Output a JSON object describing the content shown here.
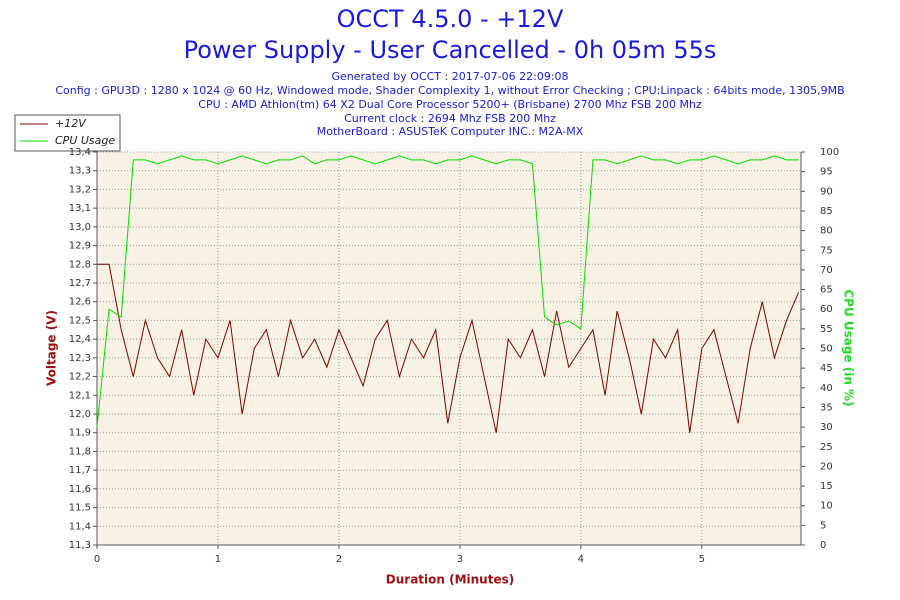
{
  "chart_data": {
    "type": "line",
    "title": "OCCT 4.5.0 - +12V",
    "subtitle": "Power Supply - User Cancelled - 0h 05m 55s",
    "info": [
      "Generated by OCCT : 2017-07-06 22:09:08",
      "Config : GPU3D : 1280 x 1024 @ 60 Hz, Windowed mode, Shader Complexity 1, without Error Checking ; CPU:Linpack : 64bits mode, 1305,9MB",
      "CPU : AMD Athlon(tm) 64 X2 Dual Core Processor 5200+ (Brisbane) 2700 Mhz FSB 200 Mhz",
      "Current clock : 2694 Mhz FSB 200 Mhz",
      "MotherBoard : ASUSTeK Computer INC.: M2A-MX"
    ],
    "x_label": "Duration (Minutes)",
    "y_label": "Voltage (V)",
    "y2_label": "CPU Usage (in %)",
    "x": [
      0,
      0.1,
      0.2,
      0.3,
      0.4,
      0.5,
      0.6,
      0.7,
      0.8,
      0.9,
      1.0,
      1.1,
      1.2,
      1.3,
      1.4,
      1.5,
      1.6,
      1.7,
      1.8,
      1.9,
      2.0,
      2.1,
      2.2,
      2.3,
      2.4,
      2.5,
      2.6,
      2.7,
      2.8,
      2.9,
      3.0,
      3.1,
      3.2,
      3.3,
      3.4,
      3.5,
      3.6,
      3.7,
      3.8,
      3.9,
      4.0,
      4.1,
      4.2,
      4.3,
      4.4,
      4.5,
      4.6,
      4.7,
      4.8,
      4.9,
      5.0,
      5.1,
      5.2,
      5.3,
      5.4,
      5.5,
      5.6,
      5.7,
      5.8
    ],
    "series": [
      {
        "name": "+12V",
        "color": "#800000",
        "values": [
          12.8,
          12.8,
          12.45,
          12.2,
          12.5,
          12.3,
          12.2,
          12.45,
          12.1,
          12.4,
          12.3,
          12.5,
          12.0,
          12.35,
          12.45,
          12.2,
          12.5,
          12.3,
          12.4,
          12.25,
          12.45,
          12.3,
          12.15,
          12.4,
          12.5,
          12.2,
          12.4,
          12.3,
          12.45,
          11.95,
          12.3,
          12.5,
          12.2,
          11.9,
          12.4,
          12.3,
          12.45,
          12.2,
          12.55,
          12.25,
          12.35,
          12.45,
          12.1,
          12.55,
          12.3,
          12.0,
          12.4,
          12.3,
          12.45,
          11.9,
          12.35,
          12.45,
          12.2,
          11.95,
          12.35,
          12.6,
          12.3,
          12.5,
          12.65
        ]
      },
      {
        "name": "CPU Usage",
        "color": "#00e000",
        "axis": "y2",
        "values": [
          30,
          60,
          58,
          98,
          98,
          97,
          98,
          99,
          98,
          98,
          97,
          98,
          99,
          98,
          97,
          98,
          98,
          99,
          97,
          98,
          98,
          99,
          98,
          97,
          98,
          99,
          98,
          98,
          97,
          98,
          98,
          99,
          98,
          97,
          98,
          98,
          97,
          58,
          56,
          57,
          55,
          98,
          98,
          97,
          98,
          99,
          98,
          98,
          97,
          98,
          98,
          99,
          98,
          97,
          98,
          98,
          99,
          98,
          98
        ]
      }
    ],
    "xlim": [
      0,
      5.82
    ],
    "xticks": [
      0,
      1,
      2,
      3,
      4,
      5
    ],
    "ylim": [
      11.3,
      13.4
    ],
    "yticks": [
      {
        "value": 11.3,
        "label": "11,3"
      },
      {
        "value": 11.4,
        "label": "11,4"
      },
      {
        "value": 11.5,
        "label": "11,5"
      },
      {
        "value": 11.6,
        "label": "11,6"
      },
      {
        "value": 11.7,
        "label": "11,7"
      },
      {
        "value": 11.8,
        "label": "11,8"
      },
      {
        "value": 11.9,
        "label": "11,9"
      },
      {
        "value": 12.0,
        "label": "12,0"
      },
      {
        "value": 12.1,
        "label": "12,1"
      },
      {
        "value": 12.2,
        "label": "12,2"
      },
      {
        "value": 12.3,
        "label": "12,3"
      },
      {
        "value": 12.4,
        "label": "12,4"
      },
      {
        "value": 12.5,
        "label": "12,5"
      },
      {
        "value": 12.6,
        "label": "12,6"
      },
      {
        "value": 12.7,
        "label": "12,7"
      },
      {
        "value": 12.8,
        "label": "12,8"
      },
      {
        "value": 12.9,
        "label": "12,9"
      },
      {
        "value": 13.0,
        "label": "13,0"
      },
      {
        "value": 13.1,
        "label": "13,1"
      },
      {
        "value": 13.2,
        "label": "13,2"
      },
      {
        "value": 13.3,
        "label": "13,3"
      },
      {
        "value": 13.4,
        "label": "13,4"
      }
    ],
    "y2lim": [
      0,
      100
    ],
    "y2ticks": [
      0,
      5,
      10,
      15,
      20,
      25,
      30,
      35,
      40,
      45,
      50,
      55,
      60,
      65,
      70,
      75,
      80,
      85,
      90,
      95,
      100
    ],
    "grid": true
  }
}
